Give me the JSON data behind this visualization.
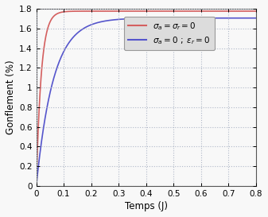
{
  "title": "",
  "xlabel": "Temps (J)",
  "ylabel": "Gonflement (%)",
  "xlim": [
    0,
    0.8
  ],
  "ylim": [
    0,
    1.8
  ],
  "xticks": [
    0,
    0.1,
    0.2,
    0.3,
    0.4,
    0.5,
    0.6,
    0.7,
    0.8
  ],
  "yticks": [
    0,
    0.2,
    0.4,
    0.6,
    0.8,
    1.0,
    1.2,
    1.4,
    1.6,
    1.8
  ],
  "line1_color": "#d45f5f",
  "line2_color": "#5555cc",
  "line1_final": 1.775,
  "line2_final": 1.705,
  "line1_tau": 0.018,
  "line2_tau": 0.062,
  "bg_color": "#f8f8f8",
  "grid_color": "#b0b8c8",
  "legend_facecolor": "#dcdcdc",
  "legend_edgecolor": "#999999",
  "legend_fontsize": 7.5,
  "tick_labelsize": 7.5,
  "xlabel_fontsize": 8.5,
  "ylabel_fontsize": 8.5
}
